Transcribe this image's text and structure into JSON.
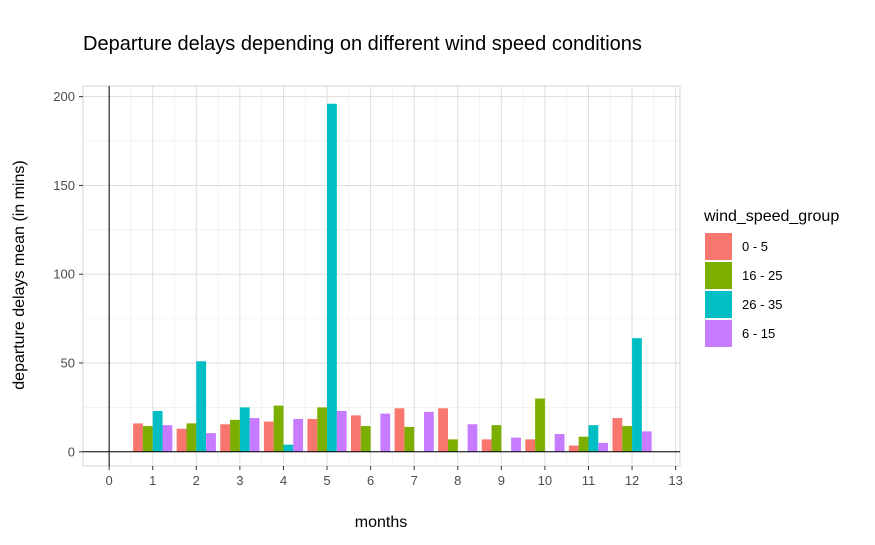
{
  "chart_data": {
    "type": "bar",
    "title": "Departure delays depending on different wind speed conditions",
    "xlabel": "months",
    "ylabel": "departure delays mean (in mins)",
    "xlim": [
      -0.6,
      13.1
    ],
    "ylim": [
      -8,
      206
    ],
    "xticks": [
      0,
      1,
      2,
      3,
      4,
      5,
      6,
      7,
      8,
      9,
      10,
      11,
      12,
      13
    ],
    "yticks": [
      0,
      50,
      100,
      150,
      200
    ],
    "grid": true,
    "legend_position": "right",
    "legend_title": "wind_speed_group",
    "categories": [
      1,
      2,
      3,
      4,
      5,
      6,
      7,
      8,
      9,
      10,
      11,
      12
    ],
    "series": [
      {
        "name": "0 - 5",
        "color": "#F8766D",
        "values": [
          16,
          13,
          15.5,
          17,
          18.5,
          20.5,
          24.5,
          24.5,
          7,
          7,
          3.5,
          19
        ]
      },
      {
        "name": "16 - 25",
        "color": "#7CAE00",
        "values": [
          14.5,
          16,
          18,
          26,
          25,
          14.5,
          14,
          7,
          15,
          30,
          8.5,
          14.5
        ]
      },
      {
        "name": "26 - 35",
        "color": "#00BFC4",
        "values": [
          23,
          51,
          25,
          4,
          196,
          null,
          null,
          null,
          null,
          null,
          15,
          64
        ]
      },
      {
        "name": "6 - 15",
        "color": "#C77CFF",
        "values": [
          15,
          10.5,
          19,
          18.5,
          23,
          21.5,
          22.5,
          15.5,
          8,
          10,
          5,
          11.5
        ]
      }
    ]
  }
}
